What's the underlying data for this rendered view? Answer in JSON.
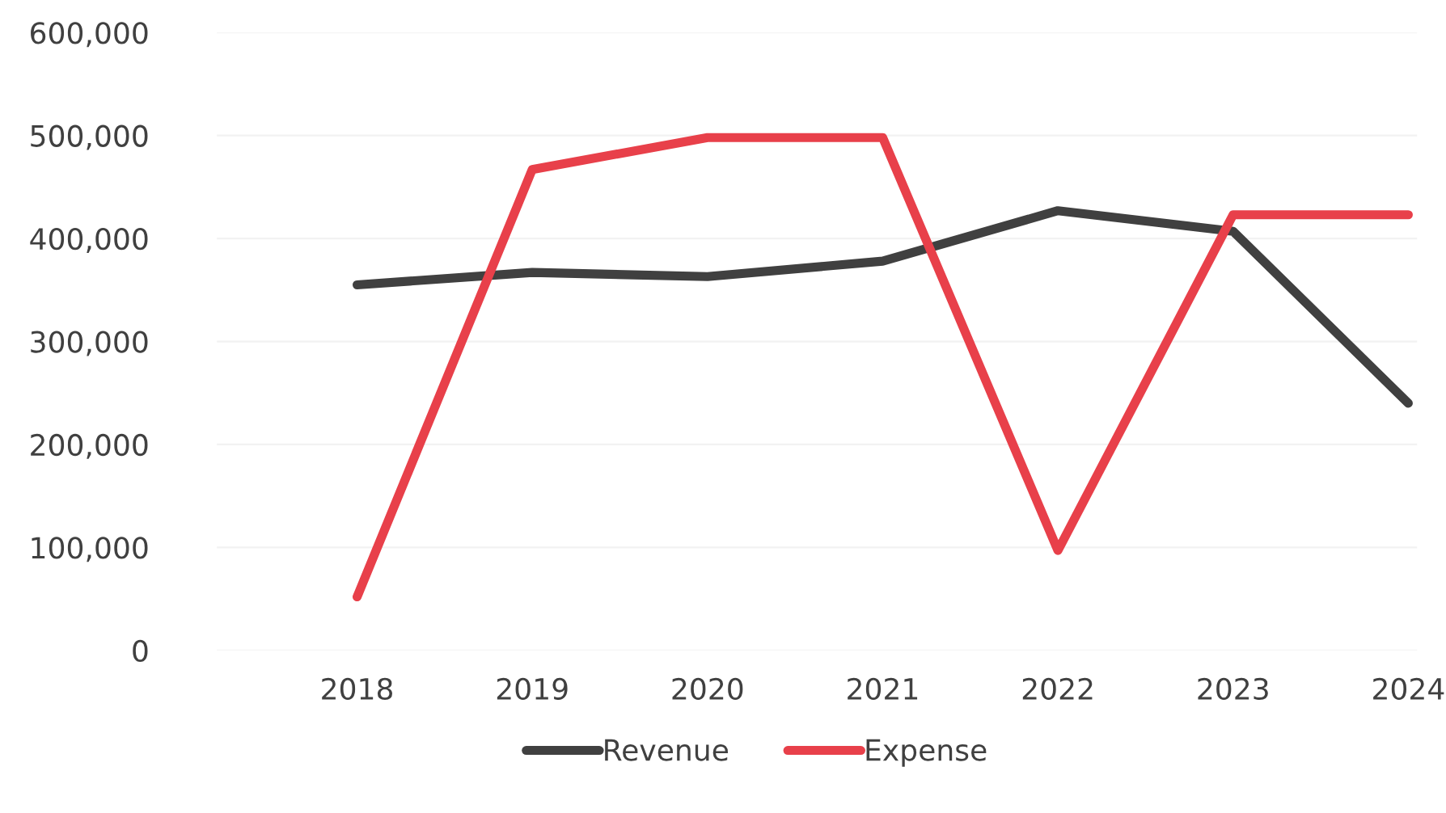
{
  "chart_data": {
    "type": "line",
    "categories": [
      "2018",
      "2019",
      "2020",
      "2021",
      "2022",
      "2023",
      "2024"
    ],
    "series": [
      {
        "name": "Revenue",
        "color": "#404040",
        "values": [
          355000,
          367000,
          363000,
          378000,
          427000,
          407000,
          240000
        ]
      },
      {
        "name": "Expense",
        "color": "#e8404a",
        "values": [
          52000,
          467000,
          498000,
          498000,
          97000,
          423000,
          423000
        ]
      }
    ],
    "ylim": [
      0,
      600000
    ],
    "yticks": [
      {
        "value": 0,
        "label": "0"
      },
      {
        "value": 100000,
        "label": "100,000"
      },
      {
        "value": 200000,
        "label": "200,000"
      },
      {
        "value": 300000,
        "label": "300,000"
      },
      {
        "value": 400000,
        "label": "400,000"
      },
      {
        "value": 500000,
        "label": "500,000"
      },
      {
        "value": 600000,
        "label": "600,000"
      }
    ],
    "grid": "y",
    "legend": "bottom",
    "line_style": "solid",
    "marker": "none"
  }
}
